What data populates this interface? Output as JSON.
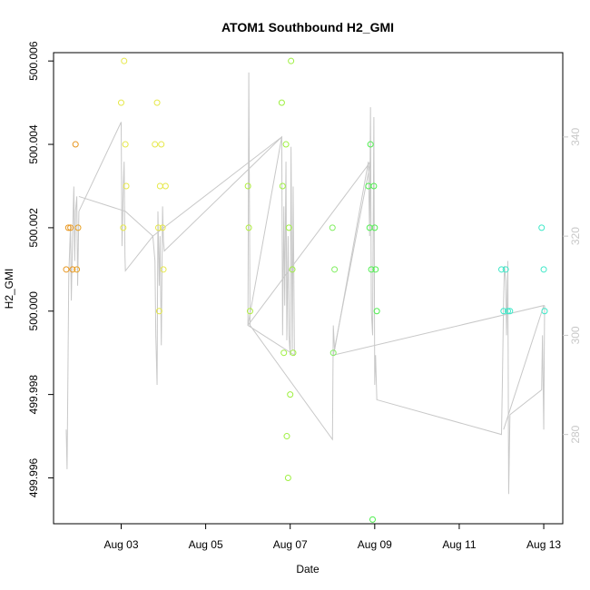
{
  "chart_data": {
    "type": "scatter",
    "title": "ATOM1 Southbound H2_GMI",
    "xlabel": "Date",
    "ylabel": "H2_GMI",
    "x_ticks": [
      {
        "day": 3,
        "label": "Aug 03"
      },
      {
        "day": 5,
        "label": "Aug 05"
      },
      {
        "day": 7,
        "label": "Aug 07"
      },
      {
        "day": 9,
        "label": "Aug 09"
      },
      {
        "day": 11,
        "label": "Aug 11"
      },
      {
        "day": 13,
        "label": "Aug 13"
      }
    ],
    "xlim": [
      1.4,
      13.45
    ],
    "ylim": [
      499.9949,
      500.0062
    ],
    "y_ticks": [
      "499.996",
      "499.998",
      "500.000",
      "500.002",
      "500.004",
      "500.006"
    ],
    "y2_ticks": [
      "280",
      "300",
      "320",
      "340"
    ],
    "y2lim": [
      262,
      357
    ],
    "grid": false,
    "points": [
      {
        "x": 1.7,
        "y": 500.001,
        "c": "#e8961e"
      },
      {
        "x": 1.75,
        "y": 500.002,
        "c": "#e8961e"
      },
      {
        "x": 1.8,
        "y": 500.002,
        "c": "#e8961e"
      },
      {
        "x": 1.85,
        "y": 500.001,
        "c": "#e8961e"
      },
      {
        "x": 1.92,
        "y": 500.004,
        "c": "#e8961e"
      },
      {
        "x": 1.95,
        "y": 500.001,
        "c": "#e8a020"
      },
      {
        "x": 1.98,
        "y": 500.002,
        "c": "#e8a020"
      },
      {
        "x": 3.0,
        "y": 500.005,
        "c": "#e6e84a"
      },
      {
        "x": 3.05,
        "y": 500.002,
        "c": "#e6e84a"
      },
      {
        "x": 3.07,
        "y": 500.006,
        "c": "#e6e84a"
      },
      {
        "x": 3.1,
        "y": 500.004,
        "c": "#e6e84a"
      },
      {
        "x": 3.12,
        "y": 500.003,
        "c": "#e6e84a"
      },
      {
        "x": 3.8,
        "y": 500.004,
        "c": "#e6e84a"
      },
      {
        "x": 3.85,
        "y": 500.005,
        "c": "#e6e84a"
      },
      {
        "x": 3.88,
        "y": 500.002,
        "c": "#e6e84a"
      },
      {
        "x": 3.9,
        "y": 500.0,
        "c": "#e6e84a"
      },
      {
        "x": 3.92,
        "y": 500.003,
        "c": "#e6e84a"
      },
      {
        "x": 3.95,
        "y": 500.004,
        "c": "#e6e84a"
      },
      {
        "x": 3.98,
        "y": 500.002,
        "c": "#e6e84a"
      },
      {
        "x": 4.0,
        "y": 500.001,
        "c": "#e6e84a"
      },
      {
        "x": 4.05,
        "y": 500.003,
        "c": "#e6e84a"
      },
      {
        "x": 6.0,
        "y": 500.003,
        "c": "#b0ee40"
      },
      {
        "x": 6.02,
        "y": 500.002,
        "c": "#b0ee40"
      },
      {
        "x": 6.05,
        "y": 500.0,
        "c": "#b0ee40"
      },
      {
        "x": 6.8,
        "y": 500.005,
        "c": "#9ef040"
      },
      {
        "x": 6.82,
        "y": 500.003,
        "c": "#9ef040"
      },
      {
        "x": 6.85,
        "y": 499.999,
        "c": "#9ef040"
      },
      {
        "x": 6.9,
        "y": 500.004,
        "c": "#9ef040"
      },
      {
        "x": 6.92,
        "y": 499.997,
        "c": "#9ef040"
      },
      {
        "x": 6.95,
        "y": 499.996,
        "c": "#9ef040"
      },
      {
        "x": 6.97,
        "y": 500.002,
        "c": "#9ef040"
      },
      {
        "x": 7.0,
        "y": 499.998,
        "c": "#9ef040"
      },
      {
        "x": 7.02,
        "y": 500.006,
        "c": "#9ef040"
      },
      {
        "x": 7.05,
        "y": 500.001,
        "c": "#9ef040"
      },
      {
        "x": 7.07,
        "y": 499.999,
        "c": "#9ef040"
      },
      {
        "x": 8.0,
        "y": 500.002,
        "c": "#80ee60"
      },
      {
        "x": 8.02,
        "y": 499.999,
        "c": "#80ee60"
      },
      {
        "x": 8.05,
        "y": 500.001,
        "c": "#80ee60"
      },
      {
        "x": 8.85,
        "y": 500.003,
        "c": "#50ee50"
      },
      {
        "x": 8.88,
        "y": 500.002,
        "c": "#50ee50"
      },
      {
        "x": 8.9,
        "y": 500.004,
        "c": "#50ee50"
      },
      {
        "x": 8.92,
        "y": 500.001,
        "c": "#50ee50"
      },
      {
        "x": 8.95,
        "y": 499.995,
        "c": "#50ee50"
      },
      {
        "x": 8.98,
        "y": 500.003,
        "c": "#50ee50"
      },
      {
        "x": 9.0,
        "y": 500.002,
        "c": "#50ee50"
      },
      {
        "x": 9.02,
        "y": 500.001,
        "c": "#50ee50"
      },
      {
        "x": 9.05,
        "y": 500.0,
        "c": "#50ee50"
      },
      {
        "x": 12.0,
        "y": 500.001,
        "c": "#3ee8c8"
      },
      {
        "x": 12.05,
        "y": 500.0,
        "c": "#3ee8c8"
      },
      {
        "x": 12.1,
        "y": 500.001,
        "c": "#3ee8c8"
      },
      {
        "x": 12.15,
        "y": 500.0,
        "c": "#3ee8c8"
      },
      {
        "x": 12.2,
        "y": 500.0,
        "c": "#3ee8c8"
      },
      {
        "x": 12.95,
        "y": 500.002,
        "c": "#3ee8c8"
      },
      {
        "x": 13.0,
        "y": 500.001,
        "c": "#3ee8c8"
      },
      {
        "x": 13.02,
        "y": 500.0,
        "c": "#3ee8c8"
      }
    ],
    "secondary_line": {
      "color": "#c8c8c8",
      "points": [
        [
          1.7,
          281
        ],
        [
          1.72,
          273
        ],
        [
          1.74,
          292
        ],
        [
          1.76,
          312
        ],
        [
          1.8,
          322
        ],
        [
          1.82,
          307
        ],
        [
          1.85,
          320
        ],
        [
          1.88,
          330
        ],
        [
          1.9,
          315
        ],
        [
          1.92,
          325
        ],
        [
          1.95,
          328
        ],
        [
          1.97,
          310
        ],
        [
          2.0,
          325
        ],
        [
          3.0,
          343
        ],
        [
          3.02,
          318
        ],
        [
          3.05,
          330
        ],
        [
          3.07,
          335
        ],
        [
          3.09,
          316
        ],
        [
          3.1,
          313
        ],
        [
          3.75,
          320
        ],
        [
          3.8,
          315
        ],
        [
          3.82,
          300
        ],
        [
          3.85,
          290
        ],
        [
          3.87,
          325
        ],
        [
          3.9,
          310
        ],
        [
          3.92,
          320
        ],
        [
          3.95,
          298
        ],
        [
          3.98,
          326
        ],
        [
          4.0,
          319
        ],
        [
          4.02,
          317
        ],
        [
          6.8,
          340
        ],
        [
          6.82,
          300
        ],
        [
          6.85,
          326
        ],
        [
          6.87,
          306
        ],
        [
          6.9,
          335
        ],
        [
          6.92,
          299
        ],
        [
          6.95,
          320
        ],
        [
          6.97,
          300
        ],
        [
          7.0,
          296
        ],
        [
          7.02,
          338
        ],
        [
          7.05,
          297
        ],
        [
          7.07,
          330
        ],
        [
          7.1,
          296
        ],
        [
          6.0,
          302
        ],
        [
          6.02,
          353
        ],
        [
          6.05,
          302
        ],
        [
          8.0,
          279
        ],
        [
          8.02,
          302
        ],
        [
          8.05,
          297
        ],
        [
          8.85,
          335
        ],
        [
          8.88,
          320
        ],
        [
          8.9,
          346
        ],
        [
          8.92,
          305
        ],
        [
          8.95,
          300
        ],
        [
          8.98,
          344
        ],
        [
          9.0,
          290
        ],
        [
          9.02,
          296
        ],
        [
          9.05,
          287
        ],
        [
          12.0,
          280
        ],
        [
          12.02,
          290
        ],
        [
          12.05,
          307
        ],
        [
          12.07,
          314
        ],
        [
          12.1,
          311
        ],
        [
          12.12,
          300
        ],
        [
          12.15,
          315
        ],
        [
          12.17,
          268
        ],
        [
          12.2,
          284
        ],
        [
          12.95,
          289
        ],
        [
          12.97,
          300
        ],
        [
          13.0,
          281
        ],
        [
          13.02,
          306
        ]
      ]
    },
    "connector_line": {
      "color": "#c8c8c8",
      "points": [
        [
          2.0,
          328
        ],
        [
          3.1,
          325
        ],
        [
          3.75,
          320
        ],
        [
          6.8,
          340
        ],
        [
          6.0,
          302
        ],
        [
          8.9,
          335
        ],
        [
          8.02,
          296
        ],
        [
          13.0,
          306
        ],
        [
          12.05,
          281
        ]
      ]
    }
  }
}
